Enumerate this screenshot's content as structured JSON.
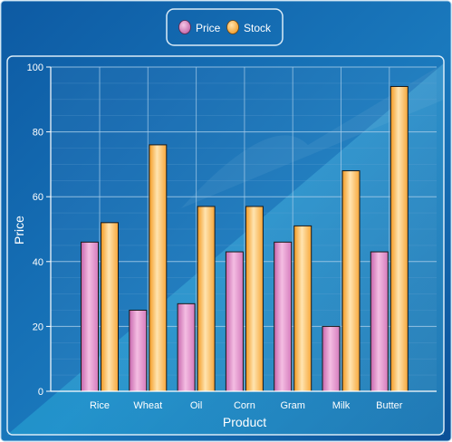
{
  "legend": {
    "items": [
      {
        "label": "Price",
        "color_top": "#e58fcd",
        "color_mid": "#f3b9e0",
        "color_dark": "#c061a6"
      },
      {
        "label": "Stock",
        "color_top": "#ffbb55",
        "color_mid": "#ffe3ad",
        "color_dark": "#f19a23"
      }
    ]
  },
  "colors": {
    "background_dark": "#0b4f97",
    "background_light": "#2aa3d6",
    "frame_border": "#d9ebf7",
    "grid": "#7fb2da",
    "text": "#ffffff"
  },
  "chart_data": {
    "type": "bar",
    "categories": [
      "Rice",
      "Wheat",
      "Oil",
      "Corn",
      "Gram",
      "Milk",
      "Butter"
    ],
    "series": [
      {
        "name": "Price",
        "values": [
          46,
          25,
          27,
          43,
          46,
          20,
          43
        ]
      },
      {
        "name": "Stock",
        "values": [
          52,
          76,
          57,
          57,
          51,
          68,
          94
        ]
      }
    ],
    "xlabel": "Product",
    "ylabel": "Price",
    "ylim": [
      0,
      100
    ],
    "yticks": [
      0,
      20,
      40,
      60,
      80,
      100
    ],
    "grid": true,
    "legend_position": "top-center"
  }
}
